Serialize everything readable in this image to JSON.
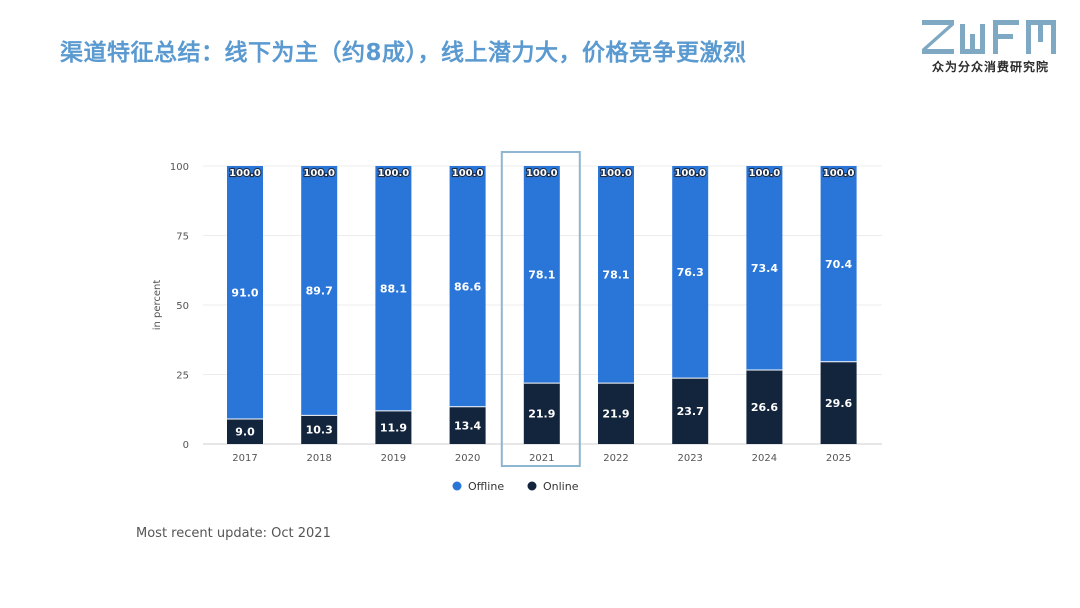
{
  "header": {
    "title": "渠道特征总结：线下为主（约8成），线上潜力大，价格竞争更激烈"
  },
  "logo": {
    "brand": "ZWFM",
    "subtitle": "众为分众消费研究院"
  },
  "footnote": "Most recent update: Oct 2021",
  "colors": {
    "title": "#5a9ad0",
    "offline": "#2a76d8",
    "online": "#13243d",
    "highlight_box": "#8fb6d0"
  },
  "chart_data": {
    "type": "bar",
    "stacked": true,
    "categories": [
      "2017",
      "2018",
      "2019",
      "2020",
      "2021",
      "2022",
      "2023",
      "2024",
      "2025"
    ],
    "series": [
      {
        "name": "Offline",
        "values": [
          91.0,
          89.7,
          88.1,
          86.6,
          78.1,
          78.1,
          76.3,
          73.4,
          70.4
        ]
      },
      {
        "name": "Online",
        "values": [
          9.0,
          10.3,
          11.9,
          13.4,
          21.9,
          21.9,
          23.7,
          26.6,
          29.6
        ]
      }
    ],
    "totals": [
      "100.0",
      "100.0",
      "100.0",
      "100.0",
      "100.0",
      "100.0",
      "100.0",
      "100.0",
      "100.0"
    ],
    "ylabel": "in percent",
    "ylim": [
      0,
      100
    ],
    "yticks": [
      0,
      25,
      50,
      75,
      100
    ],
    "grid": true,
    "legend_position": "bottom",
    "highlighted_category": "2021"
  }
}
